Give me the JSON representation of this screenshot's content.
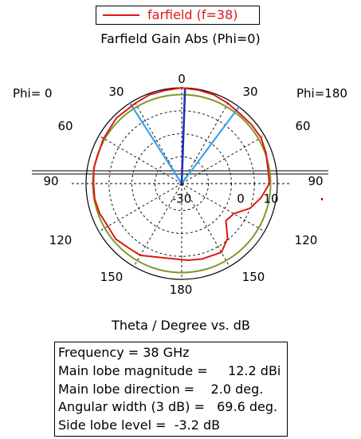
{
  "legend": {
    "label": "farfield (f=38)",
    "color": "#e01616"
  },
  "title": "Farfield Gain Abs (Phi=0)",
  "xlabel": "Theta / Degree vs. dB",
  "phi_labels": {
    "left": "Phi=  0",
    "right": "Phi=180"
  },
  "angle_labels": {
    "top": "0",
    "top_left_30": "30",
    "top_right_30": "30",
    "left_60": "60",
    "right_60": "60",
    "left_90": "90",
    "right_90": "90",
    "left_120": "120",
    "right_120": "120",
    "left_150": "150",
    "right_150": "150",
    "bottom": "180"
  },
  "radial_labels": {
    "inner": "-30",
    "middle": "0",
    "outer": "10"
  },
  "info_box": [
    "Frequency = 38 GHz",
    "Main lobe magnitude =     12.2 dBi",
    "Main lobe direction =    2.0 deg.",
    "Angular width (3 dB) =   69.6 deg.",
    "Side lobe level =  -3.2 dB"
  ],
  "chart_data": {
    "type": "polar",
    "title": "Farfield Gain Abs (Phi=0)",
    "xlabel": "Theta / Degree vs. dB",
    "radial_range_db": [
      -30,
      12.2
    ],
    "radial_ticks": [
      -30,
      0,
      10
    ],
    "angle_ticks_deg": [
      0,
      30,
      60,
      90,
      120,
      150,
      180
    ],
    "legend_placement": "top",
    "series": [
      {
        "name": "farfield (f=38)",
        "color": "#e01616",
        "points": [
          {
            "theta": -180,
            "db": 3.5
          },
          {
            "theta": -165,
            "db": 3.8
          },
          {
            "theta": -150,
            "db": 6.5
          },
          {
            "theta": -140,
            "db": 6.8
          },
          {
            "theta": -130,
            "db": 8.0
          },
          {
            "theta": -120,
            "db": 7.6
          },
          {
            "theta": -110,
            "db": 8.5
          },
          {
            "theta": -100,
            "db": 9.0
          },
          {
            "theta": -90,
            "db": 8.9
          },
          {
            "theta": -80,
            "db": 9.4
          },
          {
            "theta": -70,
            "db": 9.1
          },
          {
            "theta": -60,
            "db": 9.8
          },
          {
            "theta": -45,
            "db": 10.8
          },
          {
            "theta": -30,
            "db": 10.9
          },
          {
            "theta": -20,
            "db": 11.6
          },
          {
            "theta": -10,
            "db": 11.7
          },
          {
            "theta": 0,
            "db": 12.2
          },
          {
            "theta": 10,
            "db": 11.9
          },
          {
            "theta": 20,
            "db": 11.6
          },
          {
            "theta": 30,
            "db": 10.8
          },
          {
            "theta": 40,
            "db": 10.1
          },
          {
            "theta": 50,
            "db": 10.3
          },
          {
            "theta": 60,
            "db": 10.4
          },
          {
            "theta": 70,
            "db": 9.6
          },
          {
            "theta": 80,
            "db": 8.6
          },
          {
            "theta": 90,
            "db": 8.7
          },
          {
            "theta": 100,
            "db": 5.6
          },
          {
            "theta": 110,
            "db": 2.0
          },
          {
            "theta": 120,
            "db": -3.5
          },
          {
            "theta": 130,
            "db": -4.5
          },
          {
            "theta": 140,
            "db": 1.5
          },
          {
            "theta": 150,
            "db": 5.0
          },
          {
            "theta": 165,
            "db": 4.4
          },
          {
            "theta": 175,
            "db": 3.9
          },
          {
            "theta": 180,
            "db": 3.5
          }
        ]
      },
      {
        "name": "Main lobe direction",
        "color": "#1e2fb8",
        "points": [
          {
            "theta": 2.0,
            "db": 12.2
          }
        ]
      },
      {
        "name": "Angular width (3 dB)",
        "color": "#3ba3ee",
        "points": [
          {
            "theta": -32.8,
            "db": 12.2
          },
          {
            "theta": 36.8,
            "db": 12.2
          }
        ]
      },
      {
        "name": "-3 dB contour",
        "color": "#7c9a28",
        "points": [
          {
            "theta": 0,
            "db": 9.2
          }
        ]
      }
    ]
  }
}
